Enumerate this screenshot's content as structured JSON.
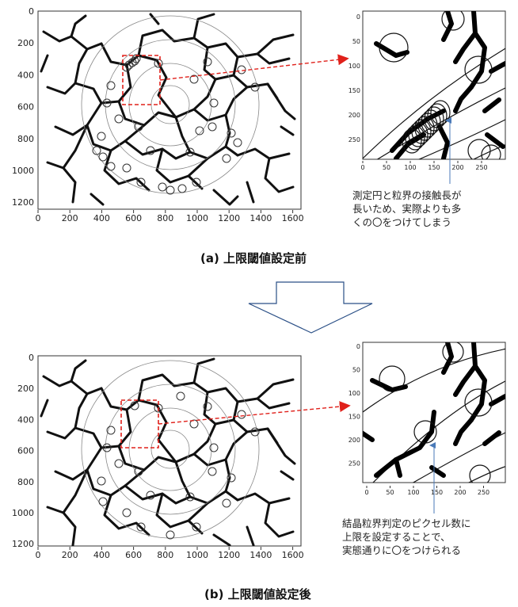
{
  "panel_a": {
    "caption": "(a) 上限閾値設定前",
    "main_plot": {
      "x_ticks": [
        "0",
        "200",
        "400",
        "600",
        "800",
        "1000",
        "1200",
        "1400",
        "1600"
      ],
      "y_ticks": [
        "0",
        "200",
        "400",
        "600",
        "800",
        "1000",
        "1200"
      ]
    },
    "zoom_plot": {
      "x_ticks": [
        "0",
        "50",
        "100",
        "150",
        "200",
        "250"
      ],
      "y_ticks": [
        "0",
        "50",
        "100",
        "150",
        "200",
        "250"
      ]
    },
    "note_lines": [
      "測定円と粒界の接触長が",
      "長いため、実際よりも多",
      "くの〇をつけてしまう"
    ]
  },
  "panel_b": {
    "caption": "(b) 上限閾値設定後",
    "main_plot": {
      "x_ticks": [
        "0",
        "200",
        "400",
        "600",
        "800",
        "1000",
        "1200",
        "1400",
        "1600"
      ],
      "y_ticks": [
        "0",
        "200",
        "400",
        "600",
        "800",
        "1000",
        "1200"
      ]
    },
    "zoom_plot": {
      "x_ticks": [
        "0",
        "50",
        "100",
        "150",
        "200",
        "250"
      ],
      "y_ticks": [
        "0",
        "50",
        "100",
        "150",
        "200",
        "250"
      ]
    },
    "note_lines": [
      "結晶粒界判定のピクセル数に",
      "上限を設定することで、",
      "実態通りに〇をつけられる"
    ]
  },
  "colors": {
    "highlight_box": "#e0201a",
    "arrow": "#e0201a",
    "pointer": "#4a7ab8",
    "transition_arrow": "#2a4f86"
  }
}
